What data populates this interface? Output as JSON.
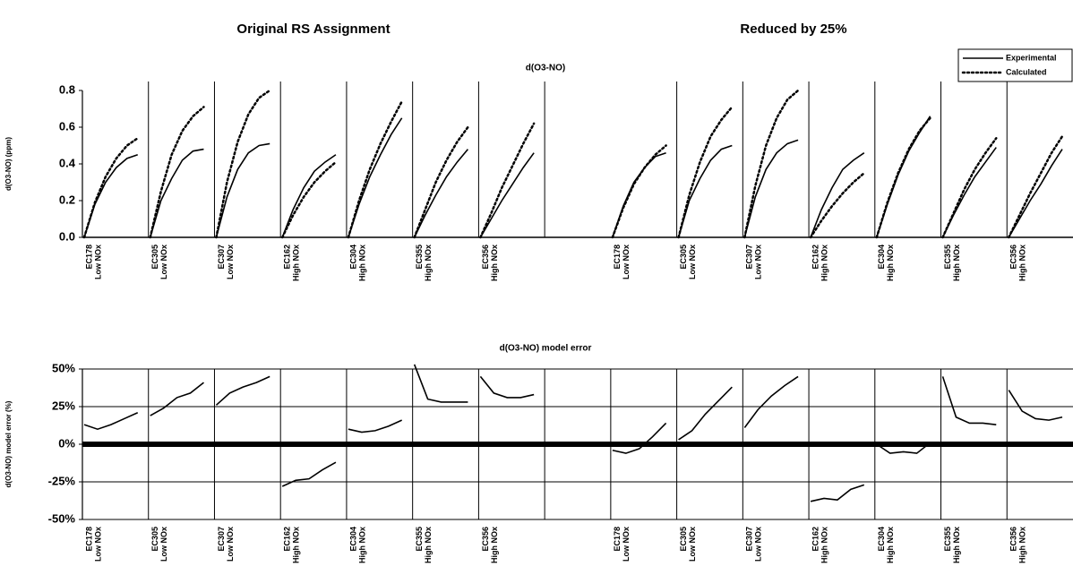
{
  "headers": [
    "Original RS Assignment",
    "Reduced by 25%"
  ],
  "chart_data": [
    {
      "type": "panel-line",
      "title": "d(O3-NO)",
      "ylabel": "d(O3-NO) (ppm)",
      "ylim": [
        0,
        0.8
      ],
      "yticks": [
        {
          "value": 0,
          "label": "0.0"
        },
        0.2,
        0.4,
        0.6,
        0.8
      ],
      "series": [
        {
          "name": "Experimental",
          "color": "#000000",
          "dashed": false
        },
        {
          "name": "Calculated",
          "color": "#000000",
          "dashed": true
        }
      ],
      "legend": "top-right",
      "panels": [
        {
          "run": "EC178",
          "condition": "Low NOx",
          "values": [
            [
              0,
              0.18,
              0.3,
              0.38,
              0.43,
              0.45
            ],
            [
              0,
              0.19,
              0.33,
              0.43,
              0.5,
              0.54
            ]
          ]
        },
        {
          "run": "EC305",
          "condition": "Low NOx",
          "values": [
            [
              0,
              0.2,
              0.32,
              0.42,
              0.47,
              0.48
            ],
            [
              0,
              0.25,
              0.45,
              0.58,
              0.66,
              0.71
            ]
          ]
        },
        {
          "run": "EC307",
          "condition": "Low NOx",
          "values": [
            [
              0,
              0.22,
              0.37,
              0.46,
              0.5,
              0.51
            ],
            [
              0,
              0.3,
              0.52,
              0.67,
              0.76,
              0.8
            ]
          ]
        },
        {
          "run": "EC162",
          "condition": "High NOx",
          "values": [
            [
              0,
              0.15,
              0.27,
              0.36,
              0.41,
              0.45
            ],
            [
              0,
              0.12,
              0.22,
              0.3,
              0.36,
              0.41
            ]
          ]
        },
        {
          "run": "EC304",
          "condition": "High NOx",
          "values": [
            [
              0,
              0.18,
              0.33,
              0.45,
              0.56,
              0.65
            ],
            [
              0,
              0.2,
              0.37,
              0.51,
              0.63,
              0.74
            ]
          ]
        },
        {
          "run": "EC355",
          "condition": "High NOx",
          "values": [
            [
              0,
              0.12,
              0.23,
              0.33,
              0.41,
              0.48
            ],
            [
              0,
              0.15,
              0.3,
              0.42,
              0.52,
              0.6
            ]
          ]
        },
        {
          "run": "EC356",
          "condition": "High NOx",
          "values": [
            [
              0,
              0.1,
              0.2,
              0.29,
              0.38,
              0.46
            ],
            [
              0,
              0.13,
              0.27,
              0.39,
              0.51,
              0.62
            ]
          ]
        },
        {
          "run": "EC178",
          "condition": "Low NOx",
          "values": [
            [
              0,
              0.17,
              0.3,
              0.38,
              0.44,
              0.46
            ],
            [
              0,
              0.16,
              0.29,
              0.38,
              0.45,
              0.5
            ]
          ]
        },
        {
          "run": "EC305",
          "condition": "Low NOx",
          "values": [
            [
              0,
              0.2,
              0.32,
              0.42,
              0.48,
              0.5
            ],
            [
              0,
              0.23,
              0.41,
              0.55,
              0.64,
              0.71
            ]
          ]
        },
        {
          "run": "EC307",
          "condition": "Low NOx",
          "values": [
            [
              0,
              0.22,
              0.37,
              0.46,
              0.51,
              0.53
            ],
            [
              0,
              0.28,
              0.5,
              0.65,
              0.75,
              0.8
            ]
          ]
        },
        {
          "run": "EC162",
          "condition": "High NOx",
          "values": [
            [
              0,
              0.15,
              0.27,
              0.37,
              0.42,
              0.46
            ],
            [
              0,
              0.09,
              0.17,
              0.24,
              0.3,
              0.35
            ]
          ]
        },
        {
          "run": "EC304",
          "condition": "High NOx",
          "values": [
            [
              0,
              0.18,
              0.34,
              0.47,
              0.57,
              0.66
            ],
            [
              0,
              0.19,
              0.35,
              0.48,
              0.58,
              0.65
            ]
          ]
        },
        {
          "run": "EC355",
          "condition": "High NOx",
          "values": [
            [
              0,
              0.12,
              0.23,
              0.33,
              0.41,
              0.49
            ],
            [
              0,
              0.13,
              0.26,
              0.37,
              0.46,
              0.54
            ]
          ]
        },
        {
          "run": "EC356",
          "condition": "High NOx",
          "values": [
            [
              0,
              0.1,
              0.2,
              0.29,
              0.39,
              0.48
            ],
            [
              0,
              0.12,
              0.24,
              0.35,
              0.46,
              0.55
            ]
          ]
        }
      ]
    },
    {
      "type": "panel-line",
      "title": "d(O3-NO) model error",
      "ylabel": "d(O3-NO) model error (%)",
      "ylim": [
        -50,
        50
      ],
      "yticks": [
        {
          "value": -50,
          "label": "-50%"
        },
        {
          "value": -25,
          "label": "-25%"
        },
        {
          "value": 0,
          "label": "0%"
        },
        {
          "value": 25,
          "label": "25%"
        },
        {
          "value": 50,
          "label": "50%"
        }
      ],
      "series": [
        {
          "color": "#000000",
          "dashed": false
        }
      ],
      "grid": true,
      "panels": [
        {
          "run": "EC178",
          "condition": "Low NOx",
          "values": [
            [
              13,
              10,
              13,
              17,
              21
            ]
          ]
        },
        {
          "run": "EC305",
          "condition": "Low NOx",
          "values": [
            [
              19,
              24,
              31,
              34,
              41
            ]
          ]
        },
        {
          "run": "EC307",
          "condition": "Low NOx",
          "values": [
            [
              26,
              34,
              38,
              41,
              45
            ]
          ]
        },
        {
          "run": "EC162",
          "condition": "High NOx",
          "values": [
            [
              -28,
              -24,
              -23,
              -17,
              -12
            ]
          ]
        },
        {
          "run": "EC304",
          "condition": "High NOx",
          "values": [
            [
              10,
              8,
              9,
              12,
              16
            ]
          ]
        },
        {
          "run": "EC355",
          "condition": "High NOx",
          "values": [
            [
              53,
              30,
              28,
              28,
              28
            ]
          ]
        },
        {
          "run": "EC356",
          "condition": "High NOx",
          "values": [
            [
              45,
              34,
              31,
              31,
              33
            ]
          ]
        },
        {
          "run": "EC178",
          "condition": "Low NOx",
          "values": [
            [
              -4,
              -6,
              -3,
              5,
              14
            ]
          ]
        },
        {
          "run": "EC305",
          "condition": "Low NOx",
          "values": [
            [
              3,
              9,
              20,
              29,
              38
            ]
          ]
        },
        {
          "run": "EC307",
          "condition": "Low NOx",
          "values": [
            [
              11,
              23,
              32,
              39,
              45
            ]
          ]
        },
        {
          "run": "EC162",
          "condition": "High NOx",
          "values": [
            [
              -38,
              -36,
              -37,
              -30,
              -27
            ]
          ]
        },
        {
          "run": "EC304",
          "condition": "High NOx",
          "values": [
            [
              0,
              -6,
              -5,
              -6,
              1
            ]
          ]
        },
        {
          "run": "EC355",
          "condition": "High NOx",
          "values": [
            [
              45,
              18,
              14,
              14,
              13
            ]
          ]
        },
        {
          "run": "EC356",
          "condition": "High NOx",
          "values": [
            [
              36,
              22,
              17,
              16,
              18
            ]
          ]
        }
      ]
    }
  ]
}
